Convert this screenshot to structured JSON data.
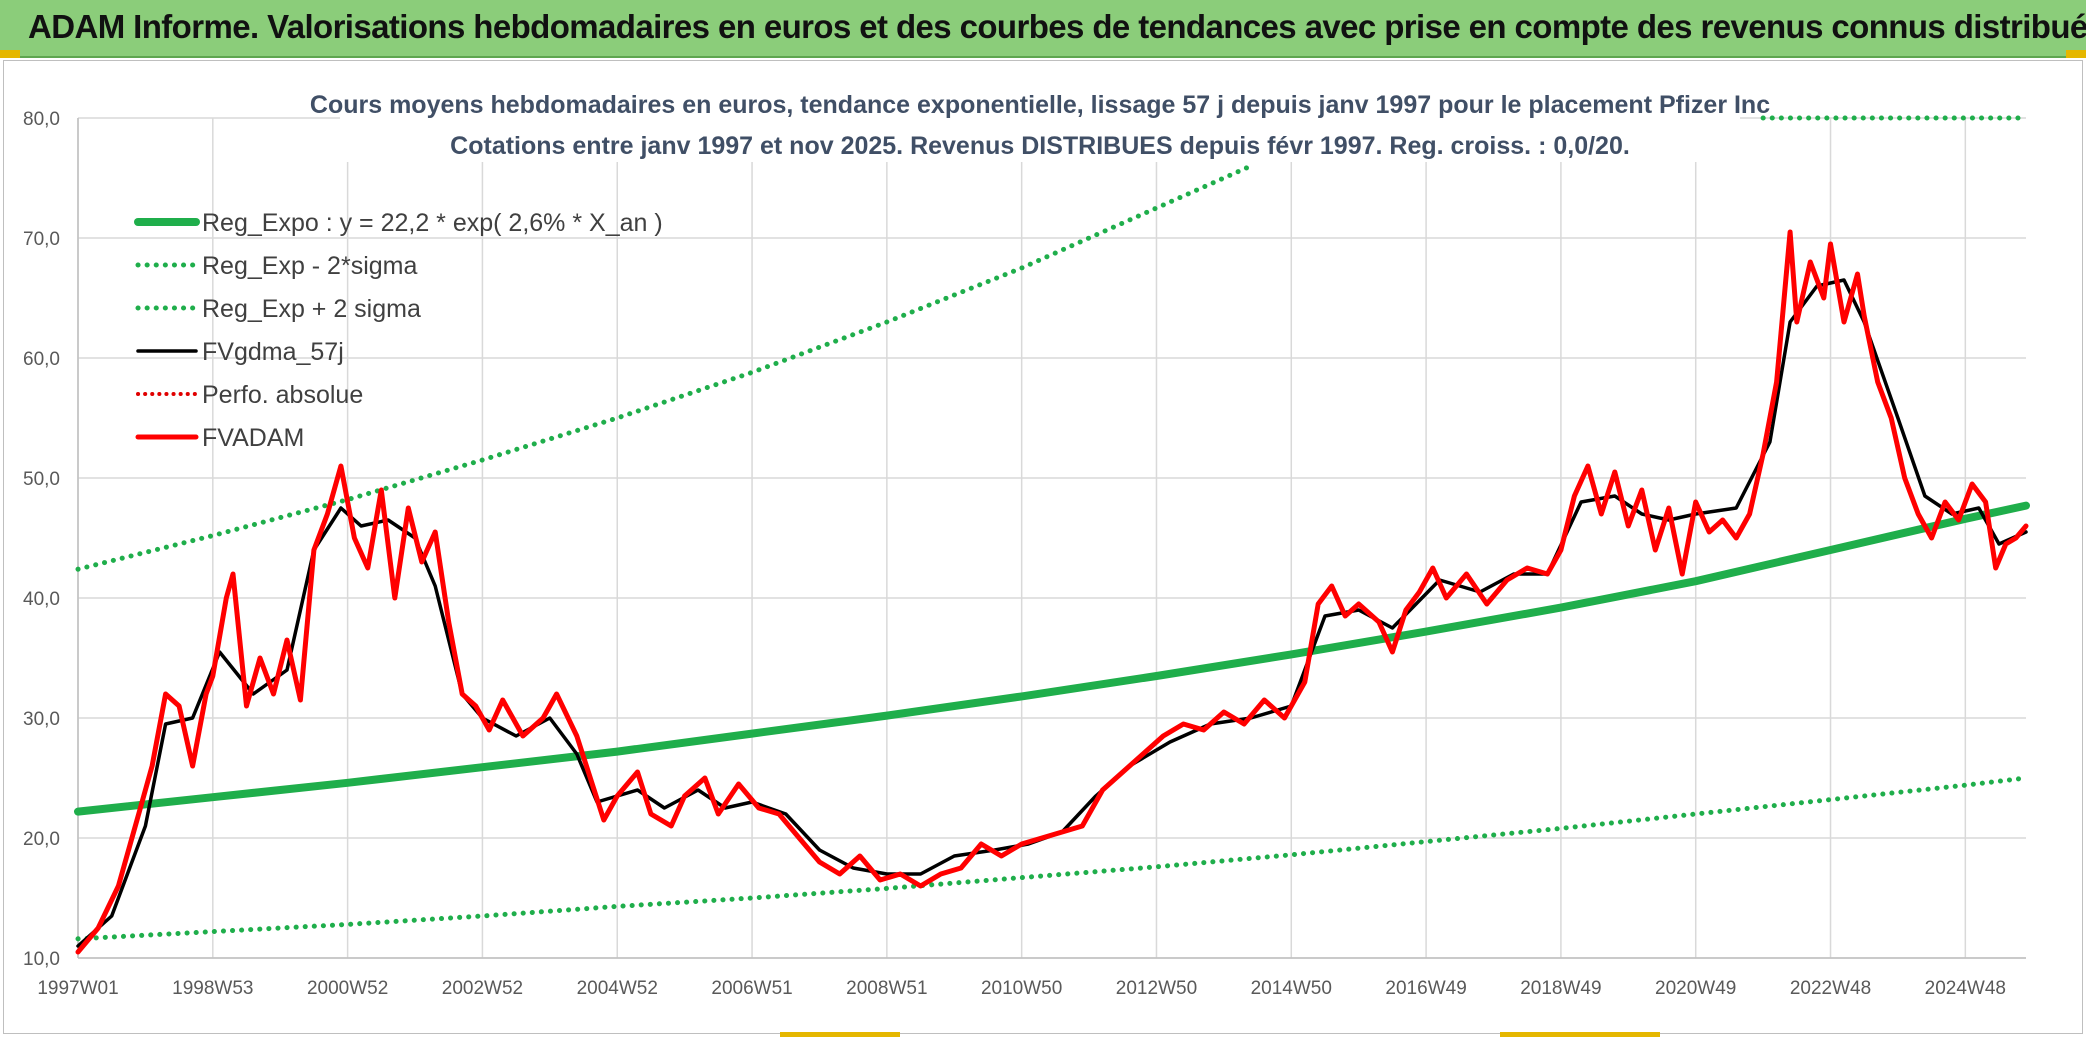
{
  "header": {
    "title": "ADAM Informe. Valorisations hebdomadaires en euros et des courbes de tendances avec prise en compte des revenus connus distribués"
  },
  "colors": {
    "banner_bg": "#8bcd7a",
    "reg_green": "#1fae4b",
    "dotted_green": "#1fae4b",
    "fvgdma_black": "#000000",
    "fvadam_red": "#ff0000",
    "perfo_red": "#e00000",
    "grid": "#d9d9d9"
  },
  "chart_data": {
    "type": "line",
    "title": [
      "Cours moyens hebdomadaires en euros, tendance exponentielle, lissage 57 j depuis janv 1997 pour le placement Pfizer Inc",
      "Cotations entre janv 1997 et nov 2025. Revenus DISTRIBUES depuis févr 1997. Reg. croiss. : 0,0/20."
    ],
    "xlabel": "",
    "ylabel": "",
    "ylim": [
      10,
      80
    ],
    "xlim": [
      1997.0,
      2025.9
    ],
    "grid": true,
    "legend_position": "top-left",
    "y_ticks": [
      "10,0",
      "20,0",
      "30,0",
      "40,0",
      "50,0",
      "60,0",
      "70,0",
      "80,0"
    ],
    "x_ticks": [
      {
        "label": "1997W01",
        "x": 1997.0
      },
      {
        "label": "1998W53",
        "x": 1999.0
      },
      {
        "label": "2000W52",
        "x": 2001.0
      },
      {
        "label": "2002W52",
        "x": 2003.0
      },
      {
        "label": "2004W52",
        "x": 2005.0
      },
      {
        "label": "2006W51",
        "x": 2007.0
      },
      {
        "label": "2008W51",
        "x": 2009.0
      },
      {
        "label": "2010W50",
        "x": 2011.0
      },
      {
        "label": "2012W50",
        "x": 2013.0
      },
      {
        "label": "2014W50",
        "x": 2015.0
      },
      {
        "label": "2016W49",
        "x": 2017.0
      },
      {
        "label": "2018W49",
        "x": 2019.0
      },
      {
        "label": "2020W49",
        "x": 2021.0
      },
      {
        "label": "2022W48",
        "x": 2023.0
      },
      {
        "label": "2024W48",
        "x": 2025.0
      }
    ],
    "series": [
      {
        "name": "Reg_Expo : y = 22,2 * exp( 2,6% *  X_an )",
        "style": "solid-thick-green",
        "values": [
          [
            1997.0,
            22.2
          ],
          [
            1999.0,
            23.4
          ],
          [
            2001.0,
            24.6
          ],
          [
            2003.0,
            25.9
          ],
          [
            2005.0,
            27.2
          ],
          [
            2007.0,
            28.7
          ],
          [
            2009.0,
            30.2
          ],
          [
            2011.0,
            31.8
          ],
          [
            2013.0,
            33.5
          ],
          [
            2015.0,
            35.3
          ],
          [
            2017.0,
            37.2
          ],
          [
            2019.0,
            39.2
          ],
          [
            2021.0,
            41.4
          ],
          [
            2023.0,
            44.0
          ],
          [
            2025.0,
            46.6
          ],
          [
            2025.9,
            47.7
          ]
        ]
      },
      {
        "name": "Reg_Exp - 2*sigma",
        "style": "dotted-green",
        "values": [
          [
            1997.0,
            11.6
          ],
          [
            1999.0,
            12.2
          ],
          [
            2001.0,
            12.8
          ],
          [
            2003.0,
            13.5
          ],
          [
            2005.0,
            14.3
          ],
          [
            2007.0,
            15.0
          ],
          [
            2009.0,
            15.8
          ],
          [
            2011.0,
            16.7
          ],
          [
            2013.0,
            17.6
          ],
          [
            2015.0,
            18.6
          ],
          [
            2017.0,
            19.7
          ],
          [
            2019.0,
            20.8
          ],
          [
            2021.0,
            22.0
          ],
          [
            2023.0,
            23.2
          ],
          [
            2025.0,
            24.4
          ],
          [
            2025.9,
            25.0
          ]
        ]
      },
      {
        "name": "Reg_Exp + 2 sigma",
        "style": "dotted-green",
        "values": [
          [
            1997.0,
            42.4
          ],
          [
            1999.0,
            45.2
          ],
          [
            2001.0,
            48.2
          ],
          [
            2003.0,
            51.5
          ],
          [
            2005.0,
            55.0
          ],
          [
            2007.0,
            58.8
          ],
          [
            2009.0,
            63.0
          ],
          [
            2011.0,
            67.5
          ],
          [
            2013.0,
            72.5
          ],
          [
            2014.4,
            76.0
          ],
          [
            2014.41,
            null
          ],
          [
            2022.0,
            80.0
          ],
          [
            2025.9,
            80.0
          ]
        ]
      },
      {
        "name": "FVgdma_57j",
        "style": "solid-black",
        "values": [
          [
            1997.0,
            11.0
          ],
          [
            1997.5,
            13.5
          ],
          [
            1998.0,
            21.0
          ],
          [
            1998.3,
            29.5
          ],
          [
            1998.7,
            30.0
          ],
          [
            1999.1,
            35.5
          ],
          [
            1999.6,
            32.0
          ],
          [
            2000.1,
            34.0
          ],
          [
            2000.5,
            44.0
          ],
          [
            2000.9,
            47.5
          ],
          [
            2001.2,
            46.0
          ],
          [
            2001.6,
            46.5
          ],
          [
            2002.0,
            45.0
          ],
          [
            2002.3,
            41.0
          ],
          [
            2002.7,
            32.0
          ],
          [
            2003.0,
            30.0
          ],
          [
            2003.5,
            28.5
          ],
          [
            2004.0,
            30.0
          ],
          [
            2004.4,
            27.0
          ],
          [
            2004.7,
            23.0
          ],
          [
            2005.3,
            24.0
          ],
          [
            2005.7,
            22.5
          ],
          [
            2006.2,
            24.0
          ],
          [
            2006.6,
            22.5
          ],
          [
            2007.0,
            23.0
          ],
          [
            2007.5,
            22.0
          ],
          [
            2008.0,
            19.0
          ],
          [
            2008.5,
            17.5
          ],
          [
            2009.0,
            17.0
          ],
          [
            2009.5,
            17.0
          ],
          [
            2010.0,
            18.5
          ],
          [
            2010.6,
            19.0
          ],
          [
            2011.1,
            19.5
          ],
          [
            2011.6,
            20.5
          ],
          [
            2012.1,
            23.5
          ],
          [
            2012.6,
            26.0
          ],
          [
            2013.2,
            28.0
          ],
          [
            2013.8,
            29.5
          ],
          [
            2014.4,
            30.0
          ],
          [
            2015.0,
            31.0
          ],
          [
            2015.5,
            38.5
          ],
          [
            2016.0,
            39.0
          ],
          [
            2016.5,
            37.5
          ],
          [
            2017.2,
            41.5
          ],
          [
            2017.8,
            40.5
          ],
          [
            2018.3,
            42.0
          ],
          [
            2018.8,
            42.0
          ],
          [
            2019.3,
            48.0
          ],
          [
            2019.8,
            48.5
          ],
          [
            2020.2,
            47.0
          ],
          [
            2020.6,
            46.5
          ],
          [
            2021.0,
            47.0
          ],
          [
            2021.6,
            47.5
          ],
          [
            2022.1,
            53.0
          ],
          [
            2022.4,
            63.0
          ],
          [
            2022.8,
            66.0
          ],
          [
            2023.2,
            66.5
          ],
          [
            2023.5,
            63.0
          ],
          [
            2024.0,
            55.0
          ],
          [
            2024.4,
            48.5
          ],
          [
            2024.8,
            47.0
          ],
          [
            2025.2,
            47.5
          ],
          [
            2025.5,
            44.5
          ],
          [
            2025.9,
            45.5
          ]
        ]
      },
      {
        "name": "Perfo. absolue",
        "style": "dotted-red",
        "values": []
      },
      {
        "name": "FVADAM",
        "style": "solid-thick-red",
        "values": [
          [
            1997.0,
            10.5
          ],
          [
            1997.3,
            12.5
          ],
          [
            1997.6,
            16.0
          ],
          [
            1997.9,
            22.0
          ],
          [
            1998.1,
            26.0
          ],
          [
            1998.3,
            32.0
          ],
          [
            1998.5,
            31.0
          ],
          [
            1998.7,
            26.0
          ],
          [
            1998.9,
            32.0
          ],
          [
            1999.0,
            33.5
          ],
          [
            1999.2,
            40.0
          ],
          [
            1999.3,
            42.0
          ],
          [
            1999.5,
            31.0
          ],
          [
            1999.7,
            35.0
          ],
          [
            1999.9,
            32.0
          ],
          [
            2000.1,
            36.5
          ],
          [
            2000.3,
            31.5
          ],
          [
            2000.5,
            44.0
          ],
          [
            2000.7,
            47.0
          ],
          [
            2000.9,
            51.0
          ],
          [
            2001.1,
            45.0
          ],
          [
            2001.3,
            42.5
          ],
          [
            2001.5,
            49.0
          ],
          [
            2001.7,
            40.0
          ],
          [
            2001.9,
            47.5
          ],
          [
            2002.1,
            43.0
          ],
          [
            2002.3,
            45.5
          ],
          [
            2002.5,
            38.0
          ],
          [
            2002.7,
            32.0
          ],
          [
            2002.9,
            31.0
          ],
          [
            2003.1,
            29.0
          ],
          [
            2003.3,
            31.5
          ],
          [
            2003.6,
            28.5
          ],
          [
            2003.9,
            30.0
          ],
          [
            2004.1,
            32.0
          ],
          [
            2004.4,
            28.5
          ],
          [
            2004.6,
            25.0
          ],
          [
            2004.8,
            21.5
          ],
          [
            2005.0,
            23.5
          ],
          [
            2005.3,
            25.5
          ],
          [
            2005.5,
            22.0
          ],
          [
            2005.8,
            21.0
          ],
          [
            2006.0,
            23.5
          ],
          [
            2006.3,
            25.0
          ],
          [
            2006.5,
            22.0
          ],
          [
            2006.8,
            24.5
          ],
          [
            2007.1,
            22.5
          ],
          [
            2007.4,
            22.0
          ],
          [
            2007.7,
            20.0
          ],
          [
            2008.0,
            18.0
          ],
          [
            2008.3,
            17.0
          ],
          [
            2008.6,
            18.5
          ],
          [
            2008.9,
            16.5
          ],
          [
            2009.2,
            17.0
          ],
          [
            2009.5,
            16.0
          ],
          [
            2009.8,
            17.0
          ],
          [
            2010.1,
            17.5
          ],
          [
            2010.4,
            19.5
          ],
          [
            2010.7,
            18.5
          ],
          [
            2011.0,
            19.5
          ],
          [
            2011.3,
            20.0
          ],
          [
            2011.6,
            20.5
          ],
          [
            2011.9,
            21.0
          ],
          [
            2012.2,
            24.0
          ],
          [
            2012.5,
            25.5
          ],
          [
            2012.8,
            27.0
          ],
          [
            2013.1,
            28.5
          ],
          [
            2013.4,
            29.5
          ],
          [
            2013.7,
            29.0
          ],
          [
            2014.0,
            30.5
          ],
          [
            2014.3,
            29.5
          ],
          [
            2014.6,
            31.5
          ],
          [
            2014.9,
            30.0
          ],
          [
            2015.2,
            33.0
          ],
          [
            2015.4,
            39.5
          ],
          [
            2015.6,
            41.0
          ],
          [
            2015.8,
            38.5
          ],
          [
            2016.0,
            39.5
          ],
          [
            2016.3,
            38.0
          ],
          [
            2016.5,
            35.5
          ],
          [
            2016.7,
            39.0
          ],
          [
            2016.9,
            40.5
          ],
          [
            2017.1,
            42.5
          ],
          [
            2017.3,
            40.0
          ],
          [
            2017.6,
            42.0
          ],
          [
            2017.9,
            39.5
          ],
          [
            2018.2,
            41.5
          ],
          [
            2018.5,
            42.5
          ],
          [
            2018.8,
            42.0
          ],
          [
            2019.0,
            44.0
          ],
          [
            2019.2,
            48.5
          ],
          [
            2019.4,
            51.0
          ],
          [
            2019.6,
            47.0
          ],
          [
            2019.8,
            50.5
          ],
          [
            2020.0,
            46.0
          ],
          [
            2020.2,
            49.0
          ],
          [
            2020.4,
            44.0
          ],
          [
            2020.6,
            47.5
          ],
          [
            2020.8,
            42.0
          ],
          [
            2021.0,
            48.0
          ],
          [
            2021.2,
            45.5
          ],
          [
            2021.4,
            46.5
          ],
          [
            2021.6,
            45.0
          ],
          [
            2021.8,
            47.0
          ],
          [
            2022.0,
            52.0
          ],
          [
            2022.2,
            58.0
          ],
          [
            2022.4,
            70.5
          ],
          [
            2022.5,
            63.0
          ],
          [
            2022.7,
            68.0
          ],
          [
            2022.9,
            65.0
          ],
          [
            2023.0,
            69.5
          ],
          [
            2023.2,
            63.0
          ],
          [
            2023.4,
            67.0
          ],
          [
            2023.5,
            63.5
          ],
          [
            2023.7,
            58.0
          ],
          [
            2023.9,
            55.0
          ],
          [
            2024.1,
            50.0
          ],
          [
            2024.3,
            47.0
          ],
          [
            2024.5,
            45.0
          ],
          [
            2024.7,
            48.0
          ],
          [
            2024.9,
            46.5
          ],
          [
            2025.1,
            49.5
          ],
          [
            2025.3,
            48.0
          ],
          [
            2025.45,
            42.5
          ],
          [
            2025.6,
            44.5
          ],
          [
            2025.75,
            45.0
          ],
          [
            2025.9,
            46.0
          ]
        ]
      }
    ]
  }
}
